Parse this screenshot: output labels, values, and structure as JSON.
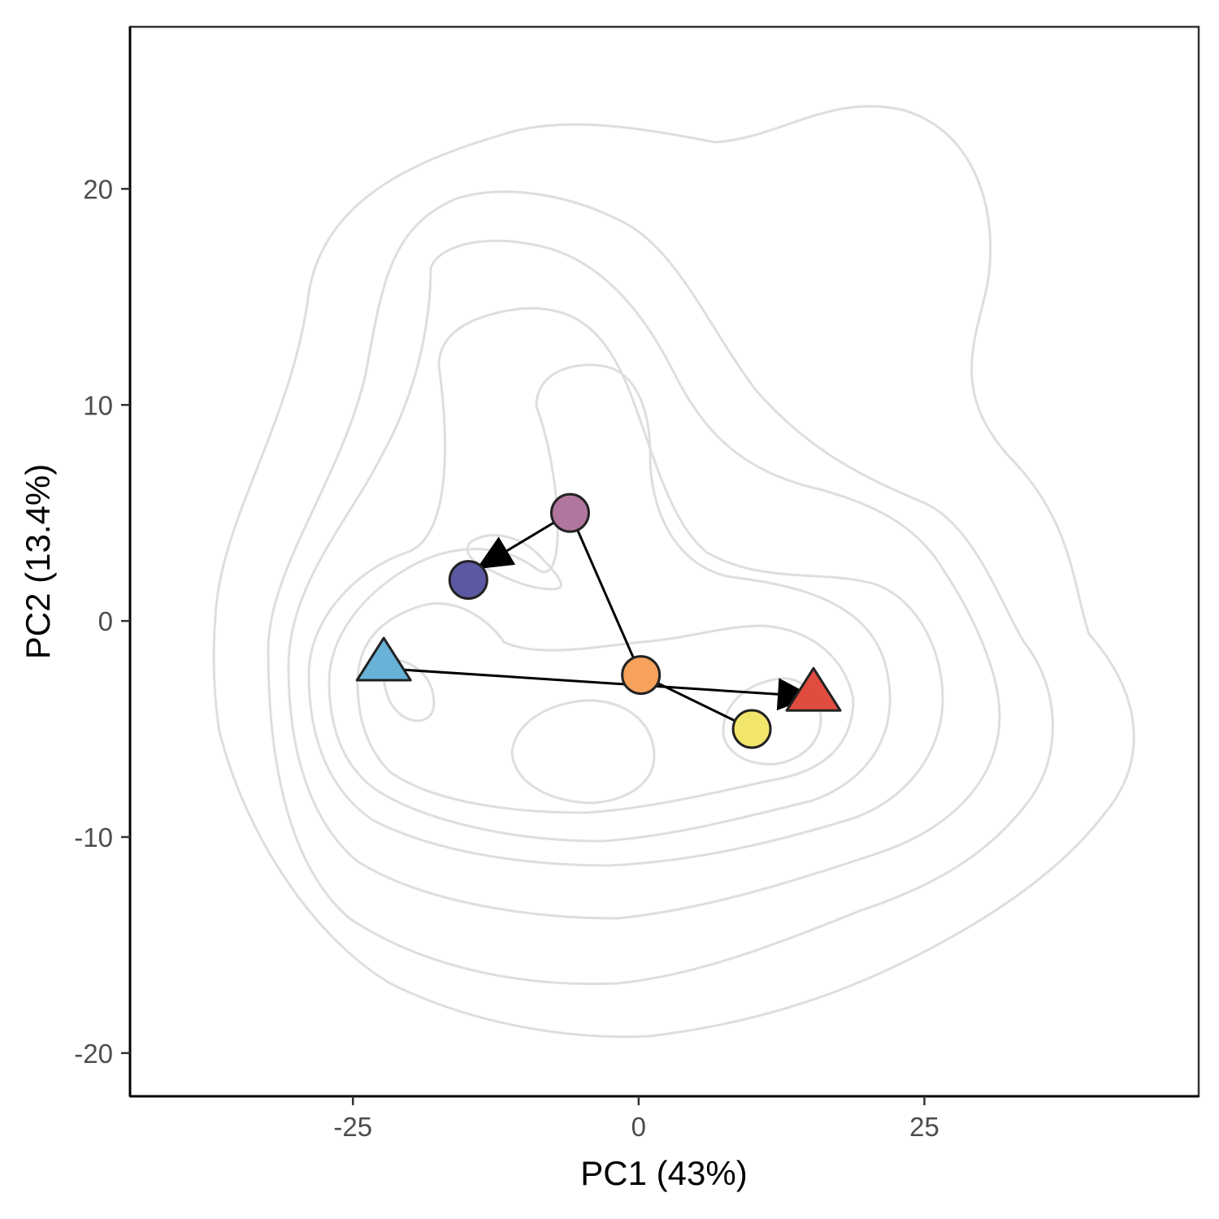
{
  "chart_data": {
    "type": "scatter",
    "title": "",
    "xlabel": "PC1 (43%)",
    "ylabel": "PC2 (13.4%)",
    "xlim": [
      -44.5,
      49
    ],
    "ylim": [
      -22,
      27.5
    ],
    "x_ticks": [
      -25,
      0,
      25
    ],
    "y_ticks": [
      -20,
      -10,
      0,
      10,
      20
    ],
    "x_tick_labels": [
      "-25",
      "0",
      "25"
    ],
    "y_tick_labels": [
      "-20",
      "-10",
      "0",
      "10",
      "20"
    ],
    "grid": false,
    "legend": "none",
    "points": [
      {
        "x": -22.3,
        "y": -2.0,
        "shape": "triangle",
        "color": "#67b2d6"
      },
      {
        "x": 15.3,
        "y": -3.4,
        "shape": "triangle",
        "color": "#e04c3f"
      },
      {
        "x": -6.0,
        "y": 5.0,
        "shape": "circle",
        "color": "#b1769e"
      },
      {
        "x": -14.9,
        "y": 1.9,
        "shape": "circle",
        "color": "#5d58a3"
      },
      {
        "x": 0.2,
        "y": -2.5,
        "shape": "circle",
        "color": "#f6a15c"
      },
      {
        "x": 9.9,
        "y": -5.0,
        "shape": "circle",
        "color": "#f2e56c"
      }
    ],
    "arrows": [
      {
        "from": [
          -6.0,
          5.0
        ],
        "to": [
          -14.2,
          2.4
        ],
        "head": true
      },
      {
        "from": [
          -6.0,
          5.0
        ],
        "to": [
          0.2,
          -2.5
        ],
        "head": false
      },
      {
        "from": [
          0.2,
          -2.5
        ],
        "to": [
          9.9,
          -5.0
        ],
        "head": false
      },
      {
        "from": [
          -22.3,
          -2.2
        ],
        "to": [
          15.3,
          -3.5
        ],
        "head": true
      }
    ],
    "density_contours": {
      "levels": 7,
      "color": "#dedede"
    }
  }
}
